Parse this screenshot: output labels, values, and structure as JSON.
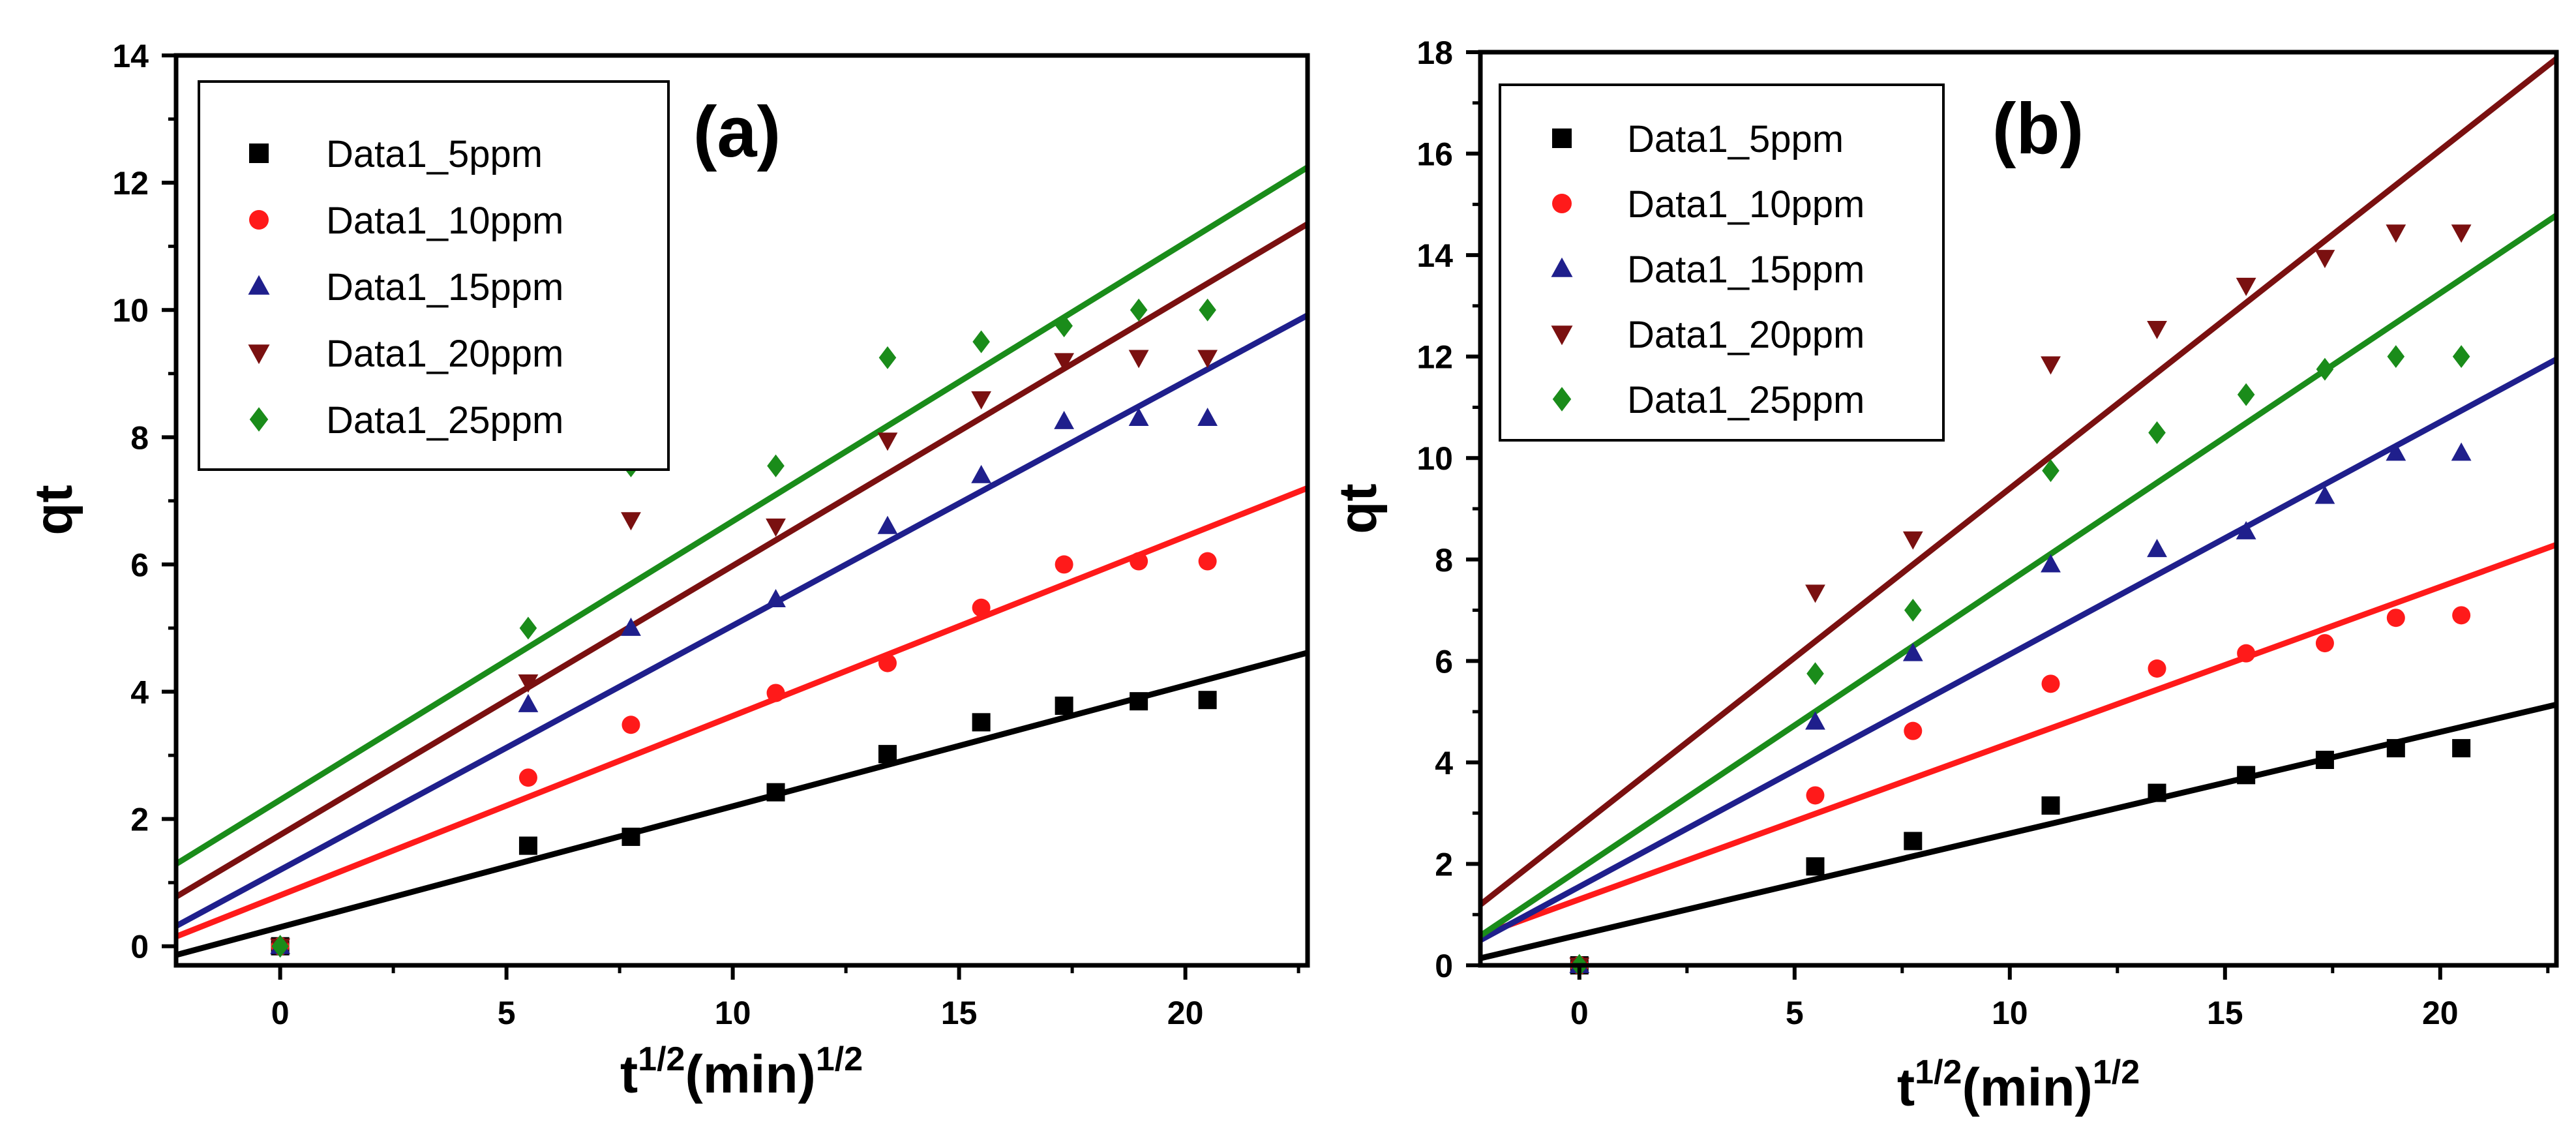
{
  "chart_data": [
    {
      "type": "scatter",
      "panel_label": "(a)",
      "xlabel_base": "t",
      "xlabel_sup1": "1/2",
      "xlabel_mid": "(min)",
      "xlabel_sup2": "1/2",
      "ylabel": "qt",
      "xlim": [
        -2.3,
        22.7
      ],
      "ylim": [
        -0.3,
        14
      ],
      "xticks": [
        0,
        5,
        10,
        15,
        20
      ],
      "yticks": [
        0,
        2,
        4,
        6,
        8,
        10,
        12,
        14
      ],
      "legend_position": "top-left",
      "x": [
        0,
        5.48,
        7.75,
        10.95,
        13.42,
        15.49,
        17.32,
        18.97,
        20.49
      ],
      "series": [
        {
          "name": "Data1_5ppm",
          "color": "#000000",
          "marker": "square",
          "values": [
            0.0,
            1.58,
            1.72,
            2.42,
            3.02,
            3.52,
            3.78,
            3.85,
            3.87
          ],
          "fit": [
            0.3,
            0.19
          ]
        },
        {
          "name": "Data1_10ppm",
          "color": "#ff1a1a",
          "marker": "circle",
          "values": [
            0.0,
            2.65,
            3.48,
            3.98,
            4.45,
            5.32,
            6.0,
            6.05,
            6.05
          ],
          "fit": [
            0.8,
            0.282
          ]
        },
        {
          "name": "Data1_15ppm",
          "color": "#1f1f8c",
          "marker": "triangle-up",
          "values": [
            0.0,
            3.8,
            5.0,
            5.45,
            6.6,
            7.4,
            8.25,
            8.3,
            8.3
          ],
          "fit": [
            1.2,
            0.384
          ]
        },
        {
          "name": "Data1_20ppm",
          "color": "#7a1010",
          "marker": "triangle-down",
          "values": [
            0.0,
            4.15,
            6.7,
            6.6,
            7.95,
            8.6,
            9.2,
            9.25,
            9.25
          ],
          "fit": [
            1.75,
            0.423
          ]
        },
        {
          "name": "Data1_25ppm",
          "color": "#1a8c1a",
          "marker": "diamond",
          "values": [
            0.0,
            5.0,
            7.55,
            7.55,
            9.25,
            9.5,
            9.75,
            10.0,
            10.0
          ],
          "fit": [
            2.3,
            0.438
          ]
        }
      ]
    },
    {
      "type": "scatter",
      "panel_label": "(b)",
      "xlabel_base": "t",
      "xlabel_sup1": "1/2",
      "xlabel_mid": "(min)",
      "xlabel_sup2": "1/2",
      "ylabel": "qt",
      "xlim": [
        -2.3,
        22.7
      ],
      "ylim": [
        0,
        18
      ],
      "xticks": [
        0,
        5,
        10,
        15,
        20
      ],
      "yticks": [
        0,
        2,
        4,
        6,
        8,
        10,
        12,
        14,
        16,
        18
      ],
      "legend_position": "top-left",
      "x": [
        0,
        5.48,
        7.75,
        10.95,
        13.42,
        15.49,
        17.32,
        18.97,
        20.49
      ],
      "series": [
        {
          "name": "Data1_5ppm",
          "color": "#000000",
          "marker": "square",
          "values": [
            0.0,
            1.95,
            2.45,
            3.15,
            3.4,
            3.75,
            4.05,
            4.28,
            4.28
          ],
          "fit": [
            0.6,
            0.2
          ]
        },
        {
          "name": "Data1_10ppm",
          "color": "#ff1a1a",
          "marker": "circle",
          "values": [
            0.0,
            3.35,
            4.62,
            5.55,
            5.85,
            6.15,
            6.35,
            6.85,
            6.9
          ],
          "fit": [
            1.3,
            0.308
          ]
        },
        {
          "name": "Data1_15ppm",
          "color": "#1f1f8c",
          "marker": "triangle-up",
          "values": [
            0.0,
            4.8,
            6.15,
            7.9,
            8.2,
            8.55,
            9.25,
            10.1,
            10.1
          ],
          "fit": [
            1.55,
            0.458
          ]
        },
        {
          "name": "Data1_20ppm",
          "color": "#7a1010",
          "marker": "triangle-down",
          "values": [
            0.0,
            7.35,
            8.4,
            11.85,
            12.55,
            13.4,
            13.95,
            14.45,
            14.45
          ],
          "fit": [
            2.73,
            0.667
          ]
        },
        {
          "name": "Data1_25ppm",
          "color": "#1a8c1a",
          "marker": "diamond",
          "values": [
            0.0,
            5.75,
            7.0,
            9.75,
            10.5,
            11.25,
            11.75,
            12.0,
            12.0
          ],
          "fit": [
            1.89,
            0.568
          ]
        }
      ]
    }
  ]
}
